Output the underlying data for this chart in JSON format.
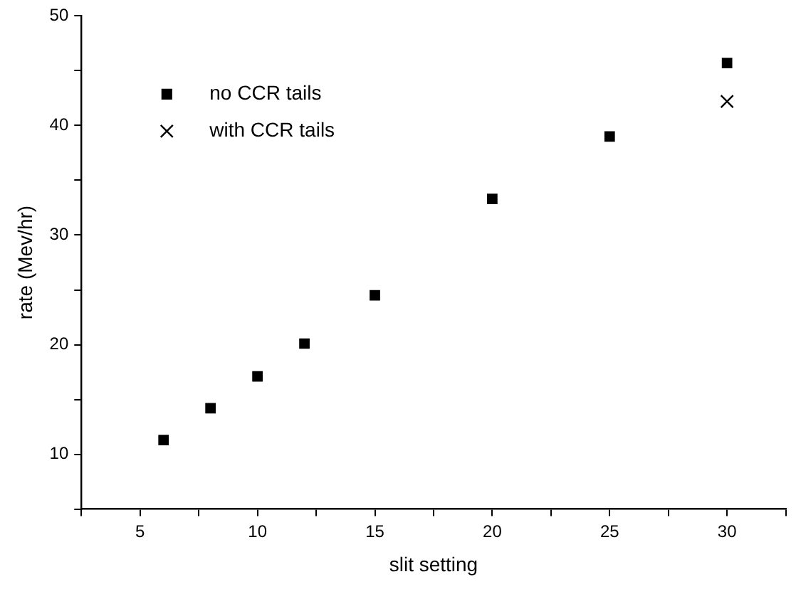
{
  "chart_data": {
    "type": "scatter",
    "xlabel": "slit setting",
    "ylabel": "rate (Mev/hr)",
    "xlim": [
      2.5,
      32.5
    ],
    "ylim": [
      5,
      50
    ],
    "xticks": [
      {
        "value": 2.5,
        "label": null
      },
      5,
      {
        "value": 7.5,
        "label": null
      },
      10,
      {
        "value": 12.5,
        "label": null
      },
      15,
      {
        "value": 17.5,
        "label": null
      },
      20,
      {
        "value": 22.5,
        "label": null
      },
      25,
      {
        "value": 27.5,
        "label": null
      },
      30,
      {
        "value": 32.5,
        "label": null
      }
    ],
    "yticks": [
      {
        "value": 5,
        "label": null
      },
      10,
      {
        "value": 15,
        "label": null
      },
      20,
      {
        "value": 25,
        "label": null
      },
      30,
      {
        "value": 35,
        "label": null
      },
      40,
      {
        "value": 45,
        "label": null
      },
      50
    ],
    "grid": false,
    "legend": "top left",
    "series": [
      {
        "name": "no CCR tails",
        "color": "#000000",
        "marker": "square",
        "x": [
          6,
          8,
          10,
          12,
          15,
          20,
          25,
          30
        ],
        "values": [
          11.3,
          14.2,
          17.1,
          20.1,
          24.5,
          33.3,
          39.0,
          45.7
        ]
      },
      {
        "name": "with CCR tails",
        "color": "#000000",
        "marker": "cross",
        "x": [
          30
        ],
        "values": [
          42.2
        ]
      }
    ]
  }
}
